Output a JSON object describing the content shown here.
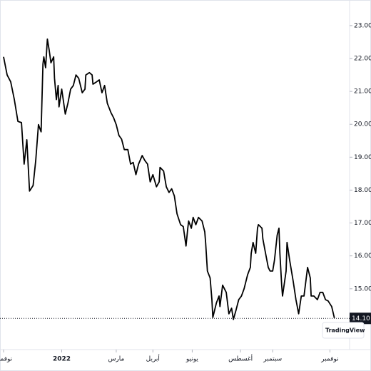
{
  "chart_data": {
    "type": "line",
    "color": "#000000",
    "grid": false,
    "watermark": "TradingView",
    "last_price": {
      "value": 14.1,
      "label": "14.10"
    },
    "xlim": [
      -4,
      387
    ],
    "ylim": [
      13.26,
      23.67
    ],
    "yticks": [
      {
        "value": 15,
        "label": "15.00"
      },
      {
        "value": 16,
        "label": "16.00"
      },
      {
        "value": 17,
        "label": "17.00"
      },
      {
        "value": 18,
        "label": "18.00"
      },
      {
        "value": 19,
        "label": "19.00"
      },
      {
        "value": 20,
        "label": "20.00"
      },
      {
        "value": 21,
        "label": "21.00"
      },
      {
        "value": 22,
        "label": "22.00"
      },
      {
        "value": 23,
        "label": "23.00"
      }
    ],
    "xticks": [
      {
        "value": 0,
        "label": "نوفمبر"
      },
      {
        "value": 65,
        "label": "2022"
      },
      {
        "value": 126,
        "label": "مارس"
      },
      {
        "value": 167,
        "label": "أبريل"
      },
      {
        "value": 211,
        "label": "يونيو"
      },
      {
        "value": 265,
        "label": "أغسطس"
      },
      {
        "value": 301,
        "label": "سبتمبر"
      },
      {
        "value": 365,
        "label": "نوفمبر"
      }
    ],
    "x": [
      0,
      4,
      8,
      12,
      16,
      20,
      23,
      26,
      29,
      33,
      36,
      39,
      42,
      44,
      45,
      47,
      49,
      51,
      53,
      56,
      57,
      59,
      61,
      62,
      65,
      69,
      72,
      75,
      78,
      81,
      84,
      88,
      91,
      92,
      96,
      99,
      100,
      104,
      107,
      110,
      113,
      116,
      120,
      123,
      126,
      129,
      132,
      135,
      139,
      142,
      145,
      148,
      151,
      155,
      158,
      161,
      164,
      167,
      171,
      174,
      175,
      179,
      182,
      185,
      188,
      191,
      194,
      198,
      201,
      204,
      206,
      207,
      210,
      212,
      215,
      218,
      222,
      225,
      226,
      228,
      231,
      233,
      234,
      238,
      241,
      242,
      245,
      249,
      252,
      255,
      257,
      260,
      263,
      266,
      269,
      273,
      276,
      277,
      279,
      282,
      284,
      285,
      289,
      290,
      293,
      296,
      298,
      301,
      303,
      306,
      308,
      309,
      311,
      312,
      316,
      317,
      320,
      324,
      327,
      330,
      333,
      336,
      340,
      343,
      344,
      347,
      351,
      354,
      357,
      360,
      363,
      367,
      370
    ],
    "values": [
      22.05,
      21.5,
      21.29,
      20.75,
      20.09,
      20.05,
      18.79,
      19.53,
      17.97,
      18.14,
      18.9,
      19.99,
      19.77,
      21.83,
      22.05,
      21.72,
      22.59,
      22.26,
      21.87,
      22.05,
      21.4,
      20.75,
      21.18,
      20.53,
      21.07,
      20.31,
      20.64,
      21.07,
      21.18,
      21.5,
      21.4,
      20.96,
      21.07,
      21.5,
      21.57,
      21.5,
      21.22,
      21.29,
      21.35,
      20.96,
      21.18,
      20.64,
      20.36,
      20.2,
      19.99,
      19.66,
      19.55,
      19.23,
      19.23,
      18.79,
      18.84,
      18.47,
      18.79,
      19.05,
      18.9,
      18.79,
      18.25,
      18.47,
      18.1,
      18.25,
      18.69,
      18.58,
      18.1,
      17.93,
      18.04,
      17.82,
      17.28,
      16.95,
      16.89,
      16.3,
      16.84,
      17.06,
      16.84,
      17.17,
      16.95,
      17.17,
      17.06,
      16.73,
      16.41,
      15.54,
      15.33,
      14.67,
      14.13,
      14.57,
      14.78,
      14.46,
      15.11,
      14.89,
      14.24,
      14.41,
      14.07,
      14.35,
      14.67,
      14.78,
      15.0,
      15.43,
      15.65,
      16.08,
      16.41,
      16.08,
      16.84,
      16.95,
      16.84,
      16.52,
      16.08,
      15.65,
      15.54,
      15.54,
      15.87,
      16.63,
      16.84,
      16.08,
      15.11,
      14.78,
      15.54,
      16.41,
      15.87,
      15.22,
      14.67,
      14.24,
      14.78,
      14.78,
      15.65,
      15.33,
      14.78,
      14.78,
      14.67,
      14.89,
      14.89,
      14.67,
      14.63,
      14.46,
      14.11
    ]
  }
}
